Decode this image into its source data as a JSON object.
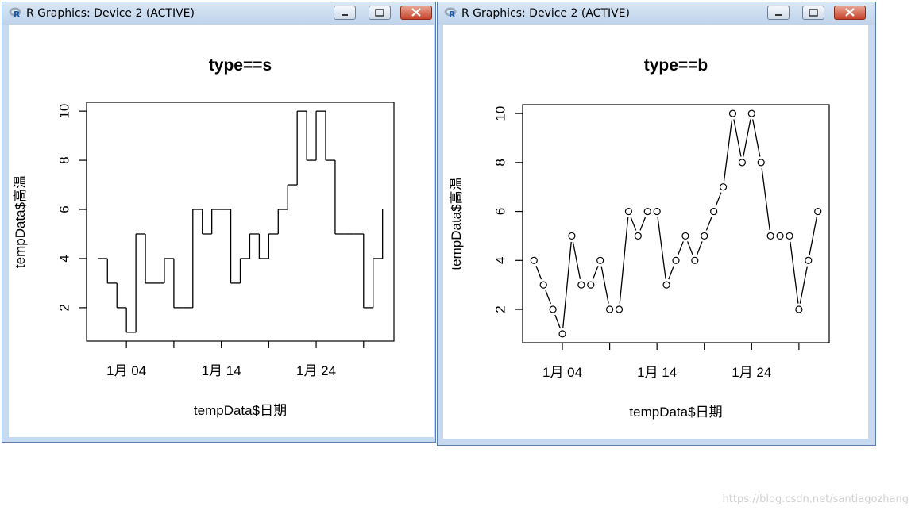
{
  "windows": [
    {
      "title": "R Graphics: Device 2 (ACTIVE)",
      "buttons": {
        "minimize": "minimize",
        "maximize": "maximize",
        "close": "close"
      }
    },
    {
      "title": "R Graphics: Device 2 (ACTIVE)",
      "buttons": {
        "minimize": "minimize",
        "maximize": "maximize",
        "close": "close"
      }
    }
  ],
  "watermark": "https://blog.csdn.net/santiagozhang",
  "chart_data": [
    {
      "type": "line",
      "plot_type": "s",
      "title": "type==s",
      "xlabel": "tempData$日期",
      "ylabel": "tempData$高温",
      "x": [
        1,
        2,
        3,
        4,
        5,
        6,
        7,
        8,
        9,
        10,
        11,
        12,
        13,
        14,
        15,
        16,
        17,
        18,
        19,
        20,
        21,
        22,
        23,
        24,
        25,
        26,
        27,
        28,
        29,
        30,
        31
      ],
      "values": [
        4,
        3,
        2,
        1,
        5,
        3,
        3,
        4,
        2,
        2,
        6,
        5,
        6,
        6,
        3,
        4,
        5,
        4,
        5,
        6,
        7,
        10,
        8,
        10,
        8,
        5,
        5,
        5,
        2,
        4,
        6
      ],
      "xticks": [
        {
          "x": 4,
          "label": "1月 04"
        },
        {
          "x": 14,
          "label": "1月 14"
        },
        {
          "x": 24,
          "label": "1月 24"
        }
      ],
      "xtick_marks": [
        4,
        9,
        14,
        19,
        24,
        29
      ],
      "yticks": [
        2,
        4,
        6,
        8,
        10
      ],
      "xlim": [
        -0.2,
        32.2
      ],
      "ylim": [
        0.64,
        10.36
      ],
      "grid": false,
      "legend": "none",
      "color": "#000000"
    },
    {
      "type": "line",
      "plot_type": "b",
      "title": "type==b",
      "xlabel": "tempData$日期",
      "ylabel": "tempData$高温",
      "x": [
        1,
        2,
        3,
        4,
        5,
        6,
        7,
        8,
        9,
        10,
        11,
        12,
        13,
        14,
        15,
        16,
        17,
        18,
        19,
        20,
        21,
        22,
        23,
        24,
        25,
        26,
        27,
        28,
        29,
        30,
        31
      ],
      "values": [
        4,
        3,
        2,
        1,
        5,
        3,
        3,
        4,
        2,
        2,
        6,
        5,
        6,
        6,
        3,
        4,
        5,
        4,
        5,
        6,
        7,
        10,
        8,
        10,
        8,
        5,
        5,
        5,
        2,
        4,
        6
      ],
      "xticks": [
        {
          "x": 4,
          "label": "1月 04"
        },
        {
          "x": 14,
          "label": "1月 14"
        },
        {
          "x": 24,
          "label": "1月 24"
        }
      ],
      "xtick_marks": [
        4,
        9,
        14,
        19,
        24,
        29
      ],
      "yticks": [
        2,
        4,
        6,
        8,
        10
      ],
      "xlim": [
        -0.2,
        32.2
      ],
      "ylim": [
        0.64,
        10.36
      ],
      "grid": false,
      "legend": "none",
      "color": "#000000"
    }
  ]
}
